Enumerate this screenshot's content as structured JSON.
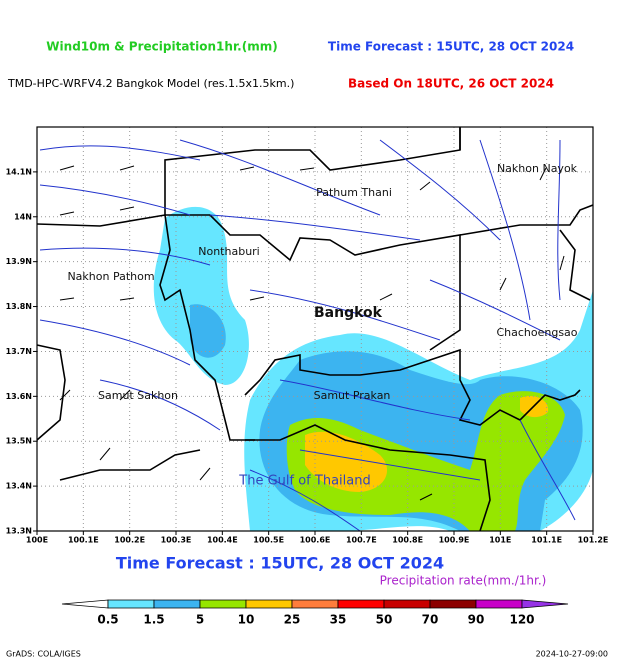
{
  "header": {
    "title": "Wind10m & Precipitation1hr.(mm)",
    "forecast": "Time Forecast : 15UTC, 28 OCT 2024",
    "model": "TMD-HPC-WRFV4.2 Bangkok Model (res.1.5x1.5km.)",
    "based_on": "Based On 18UTC, 26 OCT 2024"
  },
  "map": {
    "lat_lim": [
      13.3,
      14.2
    ],
    "lon_lim": [
      100,
      101.2
    ],
    "lat_ticks": [
      {
        "value": 14.1,
        "label": "14.1N"
      },
      {
        "value": 14,
        "label": "14N"
      },
      {
        "value": 13.9,
        "label": "13.9N"
      },
      {
        "value": 13.8,
        "label": "13.8N"
      },
      {
        "value": 13.7,
        "label": "13.7N"
      },
      {
        "value": 13.6,
        "label": "13.6N"
      },
      {
        "value": 13.5,
        "label": "13.5N"
      },
      {
        "value": 13.4,
        "label": "13.4N"
      },
      {
        "value": 13.3,
        "label": "13.3N"
      }
    ],
    "lon_ticks": [
      {
        "value": 100,
        "label": "100E"
      },
      {
        "value": 100.1,
        "label": "100.1E"
      },
      {
        "value": 100.2,
        "label": "100.2E"
      },
      {
        "value": 100.3,
        "label": "100.3E"
      },
      {
        "value": 100.4,
        "label": "100.4E"
      },
      {
        "value": 100.5,
        "label": "100.5E"
      },
      {
        "value": 100.6,
        "label": "100.6E"
      },
      {
        "value": 100.7,
        "label": "100.7E"
      },
      {
        "value": 100.8,
        "label": "100.8E"
      },
      {
        "value": 100.9,
        "label": "100.9E"
      },
      {
        "value": 101,
        "label": "101E"
      },
      {
        "value": 101.1,
        "label": "101.1E"
      },
      {
        "value": 101.2,
        "label": "101.2E"
      }
    ],
    "places": [
      "Nakhon Nayok",
      "Pathum Thani",
      "Nonthaburi",
      "Nakhon Pathom",
      "Bangkok",
      "Chachoengsao",
      "Samut Sakhon",
      "Samut Prakan",
      "The Gulf of Thailand"
    ]
  },
  "footer": {
    "forecast": "Time Forecast : 15UTC, 28 OCT 2024",
    "legend_title": "Precipitation rate(mm./1hr.)",
    "levels": [
      0.5,
      1.5,
      5,
      10,
      25,
      35,
      50,
      70,
      90,
      120
    ],
    "colors": [
      "#ffffff",
      "#66e6ff",
      "#3cb4f0",
      "#96e600",
      "#ffc800",
      "#ff7d3c",
      "#ff0000",
      "#c80000",
      "#8c0000",
      "#c800c8",
      "#9632e6"
    ],
    "credit": "GrADS: COLA/IGES",
    "timestamp": "2024-10-27-09:00"
  }
}
